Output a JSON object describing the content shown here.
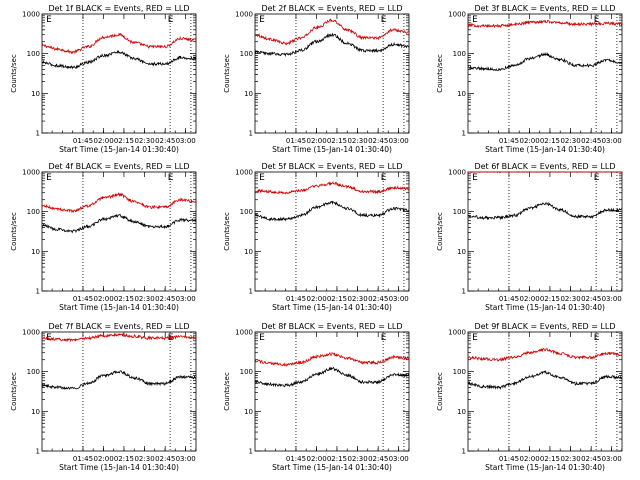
{
  "chart_data": [
    {
      "type": "line",
      "title": "Det 1f BLACK = Events, RED = LLD",
      "xlabel": "Start Time (15-Jan-14 01:30:40)",
      "ylabel": "Counts/sec",
      "yscale": "log",
      "ylim": [
        1,
        1000
      ],
      "xlim": [
        0,
        100
      ],
      "xticks": [
        "01:45",
        "02:00",
        "02:15",
        "02:30",
        "02:45",
        "03:00"
      ],
      "yticks": [
        "1",
        "10",
        "100",
        "1000"
      ],
      "vlines": [
        26.6,
        83.2,
        96.7
      ],
      "marker_labels": [
        "E",
        "E"
      ],
      "markers": [
        4.5,
        83.5
      ],
      "legend": "in title",
      "grid": false,
      "series": [
        {
          "color": "#d00000",
          "x": [
            0,
            10,
            20,
            30,
            40,
            50,
            60,
            70,
            80,
            90,
            100
          ],
          "values": [
            160,
            130,
            110,
            150,
            260,
            300,
            190,
            150,
            150,
            240,
            220
          ]
        },
        {
          "color": "#000000",
          "x": [
            0,
            10,
            20,
            30,
            40,
            50,
            60,
            70,
            80,
            90,
            100
          ],
          "values": [
            60,
            50,
            45,
            60,
            90,
            110,
            75,
            55,
            55,
            80,
            75
          ]
        }
      ]
    },
    {
      "type": "line",
      "title": "Det 2f BLACK = Events, RED = LLD",
      "xlabel": "Start Time (15-Jan-14 01:30:40)",
      "ylabel": "Counts/sec",
      "yscale": "log",
      "ylim": [
        1,
        1000
      ],
      "xlim": [
        0,
        100
      ],
      "xticks": [
        "01:45",
        "02:00",
        "02:15",
        "02:30",
        "02:45",
        "03:00"
      ],
      "yticks": [
        "1",
        "10",
        "100",
        "1000"
      ],
      "vlines": [
        26.6,
        83.2,
        96.7
      ],
      "marker_labels": [
        "E",
        "E"
      ],
      "markers": [
        4.5,
        83.5
      ],
      "legend": "in title",
      "grid": false,
      "series": [
        {
          "color": "#d00000",
          "x": [
            0,
            10,
            20,
            30,
            40,
            50,
            60,
            70,
            80,
            90,
            100
          ],
          "values": [
            300,
            230,
            180,
            250,
            450,
            700,
            400,
            250,
            250,
            400,
            350
          ]
        },
        {
          "color": "#000000",
          "x": [
            0,
            10,
            20,
            30,
            40,
            50,
            60,
            70,
            80,
            90,
            100
          ],
          "values": [
            110,
            100,
            95,
            120,
            200,
            300,
            180,
            120,
            120,
            170,
            150
          ]
        }
      ]
    },
    {
      "type": "line",
      "title": "Det 3f BLACK = Events, RED = LLD",
      "xlabel": "Start Time (15-Jan-14 01:30:40)",
      "ylabel": "Counts/sec",
      "yscale": "log",
      "ylim": [
        1,
        1000
      ],
      "xlim": [
        0,
        100
      ],
      "xticks": [
        "01:45",
        "02:00",
        "02:15",
        "02:30",
        "02:45",
        "03:00"
      ],
      "yticks": [
        "1",
        "10",
        "100",
        "1000"
      ],
      "vlines": [
        26.6,
        83.2,
        96.7
      ],
      "marker_labels": [
        "E",
        "E"
      ],
      "markers": [
        4.5,
        83.5
      ],
      "legend": "in title",
      "grid": false,
      "series": [
        {
          "color": "#d00000",
          "x": [
            0,
            10,
            20,
            30,
            40,
            50,
            60,
            70,
            80,
            90,
            100
          ],
          "values": [
            520,
            500,
            500,
            540,
            620,
            650,
            600,
            550,
            560,
            580,
            560
          ]
        },
        {
          "color": "#000000",
          "x": [
            0,
            10,
            20,
            30,
            40,
            50,
            60,
            70,
            80,
            90,
            100
          ],
          "values": [
            45,
            42,
            40,
            50,
            75,
            95,
            70,
            50,
            50,
            70,
            60
          ]
        }
      ]
    },
    {
      "type": "line",
      "title": "Det 4f BLACK = Events, RED = LLD",
      "xlabel": "Start Time (15-Jan-14 01:30:40)",
      "ylabel": "Counts/sec",
      "yscale": "log",
      "ylim": [
        1,
        1000
      ],
      "xlim": [
        0,
        100
      ],
      "xticks": [
        "01:45",
        "02:00",
        "02:15",
        "02:30",
        "02:45",
        "03:00"
      ],
      "yticks": [
        "1",
        "10",
        "100",
        "1000"
      ],
      "vlines": [
        26.6,
        83.2,
        96.7
      ],
      "marker_labels": [
        "E",
        "E"
      ],
      "markers": [
        4.5,
        83.5
      ],
      "legend": "in title",
      "grid": false,
      "series": [
        {
          "color": "#d00000",
          "x": [
            0,
            10,
            20,
            30,
            40,
            50,
            60,
            70,
            80,
            90,
            100
          ],
          "values": [
            140,
            115,
            105,
            140,
            220,
            270,
            180,
            130,
            130,
            200,
            180
          ]
        },
        {
          "color": "#000000",
          "x": [
            0,
            10,
            20,
            30,
            40,
            50,
            60,
            70,
            80,
            90,
            100
          ],
          "values": [
            45,
            36,
            32,
            42,
            65,
            80,
            55,
            42,
            42,
            62,
            60
          ]
        }
      ]
    },
    {
      "type": "line",
      "title": "Det 5f BLACK = Events, RED = LLD",
      "xlabel": "Start Time (15-Jan-14 01:30:40)",
      "ylabel": "Counts/sec",
      "yscale": "log",
      "ylim": [
        1,
        1000
      ],
      "xlim": [
        0,
        100
      ],
      "xticks": [
        "01:45",
        "02:00",
        "02:15",
        "02:30",
        "02:45",
        "03:00"
      ],
      "yticks": [
        "1",
        "10",
        "100",
        "1000"
      ],
      "vlines": [
        26.6,
        83.2,
        96.7
      ],
      "marker_labels": [
        "E",
        "E"
      ],
      "markers": [
        4.5,
        83.5
      ],
      "legend": "in title",
      "grid": false,
      "series": [
        {
          "color": "#d00000",
          "x": [
            0,
            10,
            20,
            30,
            40,
            50,
            60,
            70,
            80,
            90,
            100
          ],
          "values": [
            340,
            320,
            300,
            340,
            440,
            520,
            420,
            320,
            320,
            400,
            380
          ]
        },
        {
          "color": "#000000",
          "x": [
            0,
            10,
            20,
            30,
            40,
            50,
            60,
            70,
            80,
            90,
            100
          ],
          "values": [
            80,
            65,
            65,
            80,
            130,
            170,
            120,
            80,
            80,
            120,
            110
          ]
        }
      ]
    },
    {
      "type": "line",
      "title": "Det 6f BLACK = Events, RED = LLD",
      "xlabel": "Start Time (15-Jan-14 01:30:40)",
      "ylabel": "Counts/sec",
      "yscale": "log",
      "ylim": [
        1,
        1000
      ],
      "xlim": [
        0,
        100
      ],
      "xticks": [
        "01:45",
        "02:00",
        "02:15",
        "02:30",
        "02:45",
        "03:00"
      ],
      "yticks": [
        "1",
        "10",
        "100",
        "1000"
      ],
      "vlines": [
        26.6,
        83.2,
        96.7
      ],
      "marker_labels": [
        "E",
        "E"
      ],
      "markers": [
        4.5,
        83.5
      ],
      "legend": "in title",
      "grid": false,
      "series": [
        {
          "color": "#d00000",
          "x": [
            0,
            10,
            20,
            30,
            40,
            50,
            60,
            70,
            80,
            90,
            100
          ],
          "values": [
            1050,
            1050,
            1050,
            1050,
            1060,
            1060,
            1060,
            1050,
            1050,
            1060,
            1050
          ]
        },
        {
          "color": "#000000",
          "x": [
            0,
            10,
            20,
            30,
            40,
            50,
            60,
            70,
            80,
            90,
            100
          ],
          "values": [
            80,
            70,
            70,
            80,
            120,
            160,
            110,
            75,
            75,
            110,
            110
          ]
        }
      ]
    },
    {
      "type": "line",
      "title": "Det 7f BLACK = Events, RED = LLD",
      "xlabel": "Start Time (15-Jan-14 01:30:40)",
      "ylabel": "Counts/sec",
      "yscale": "log",
      "ylim": [
        1,
        1000
      ],
      "xlim": [
        0,
        100
      ],
      "xticks": [
        "01:45",
        "02:00",
        "02:15",
        "02:30",
        "02:45",
        "03:00"
      ],
      "yticks": [
        "1",
        "10",
        "100",
        "1000"
      ],
      "vlines": [
        26.6,
        83.2,
        96.7
      ],
      "marker_labels": [
        "E",
        "E"
      ],
      "markers": [
        4.5,
        83.5
      ],
      "legend": "in title",
      "grid": false,
      "series": [
        {
          "color": "#d00000",
          "x": [
            0,
            10,
            20,
            30,
            40,
            50,
            60,
            70,
            80,
            90,
            100
          ],
          "values": [
            700,
            650,
            640,
            700,
            800,
            850,
            780,
            700,
            700,
            760,
            720
          ]
        },
        {
          "color": "#000000",
          "x": [
            0,
            10,
            20,
            30,
            40,
            50,
            60,
            70,
            80,
            90,
            100
          ],
          "values": [
            45,
            40,
            38,
            50,
            80,
            100,
            70,
            50,
            50,
            75,
            70
          ]
        }
      ]
    },
    {
      "type": "line",
      "title": "Det 8f BLACK = Events, RED = LLD",
      "xlabel": "Start Time (15-Jan-14 01:30:40)",
      "ylabel": "Counts/sec",
      "yscale": "log",
      "ylim": [
        1,
        1000
      ],
      "xlim": [
        0,
        100
      ],
      "xticks": [
        "01:45",
        "02:00",
        "02:15",
        "02:30",
        "02:45",
        "03:00"
      ],
      "yticks": [
        "1",
        "10",
        "100",
        "1000"
      ],
      "vlines": [
        26.6,
        83.2,
        96.7
      ],
      "marker_labels": [
        "E",
        "E"
      ],
      "markers": [
        4.5,
        83.5
      ],
      "legend": "in title",
      "grid": false,
      "series": [
        {
          "color": "#d00000",
          "x": [
            0,
            10,
            20,
            30,
            40,
            50,
            60,
            70,
            80,
            90,
            100
          ],
          "values": [
            190,
            160,
            150,
            170,
            240,
            280,
            220,
            170,
            170,
            230,
            220
          ]
        },
        {
          "color": "#000000",
          "x": [
            0,
            10,
            20,
            30,
            40,
            50,
            60,
            70,
            80,
            90,
            100
          ],
          "values": [
            55,
            48,
            45,
            55,
            85,
            120,
            80,
            55,
            55,
            85,
            80
          ]
        }
      ]
    },
    {
      "type": "line",
      "title": "Det 9f BLACK = Events, RED = LLD",
      "xlabel": "Start Time (15-Jan-14 01:30:40)",
      "ylabel": "Counts/sec",
      "yscale": "log",
      "ylim": [
        1,
        1000
      ],
      "xlim": [
        0,
        100
      ],
      "xticks": [
        "01:45",
        "02:00",
        "02:15",
        "02:30",
        "02:45",
        "03:00"
      ],
      "yticks": [
        "1",
        "10",
        "100",
        "1000"
      ],
      "vlines": [
        26.6,
        83.2,
        96.7
      ],
      "marker_labels": [
        "E",
        "E"
      ],
      "markers": [
        4.5,
        83.5
      ],
      "legend": "in title",
      "grid": false,
      "series": [
        {
          "color": "#d00000",
          "x": [
            0,
            10,
            20,
            30,
            40,
            50,
            60,
            70,
            80,
            90,
            100
          ],
          "values": [
            230,
            210,
            200,
            230,
            300,
            360,
            290,
            230,
            230,
            290,
            270
          ]
        },
        {
          "color": "#000000",
          "x": [
            0,
            10,
            20,
            30,
            40,
            50,
            60,
            70,
            80,
            90,
            100
          ],
          "values": [
            50,
            42,
            40,
            50,
            75,
            95,
            70,
            50,
            50,
            75,
            70
          ]
        }
      ]
    }
  ]
}
